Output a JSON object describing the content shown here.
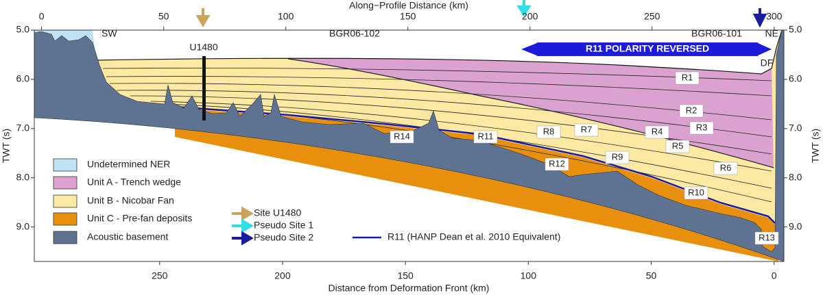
{
  "axes": {
    "top": {
      "label": "Along−Profile Distance (km)",
      "xlim": [
        -3,
        304
      ],
      "ticks": [
        0,
        50,
        100,
        150,
        200,
        250,
        300
      ]
    },
    "bottom": {
      "label": "Distance from Deformation Front (km)",
      "xlim": [
        301,
        -4
      ],
      "ticks": [
        250,
        200,
        150,
        100,
        50,
        0
      ]
    },
    "left": {
      "label": "TWT (s)",
      "ylim": [
        5.0,
        9.7
      ],
      "ticks": [
        {
          "value": 5,
          "label": "5.0"
        },
        {
          "value": 6,
          "label": "6.0"
        },
        {
          "value": 7,
          "label": "7.0"
        },
        {
          "value": 8,
          "label": "8.0"
        },
        {
          "value": 9,
          "label": "9.0"
        }
      ]
    },
    "right": {
      "label": "TWT (s)",
      "ylim": [
        5.0,
        9.7
      ],
      "ticks": [
        {
          "value": 5,
          "label": "5.0"
        },
        {
          "value": 6,
          "label": "6.0"
        },
        {
          "value": 7,
          "label": "7.0"
        },
        {
          "value": 8,
          "label": "8.0"
        },
        {
          "value": 9,
          "label": "9.0"
        }
      ]
    }
  },
  "annotations": {
    "sw": "SW",
    "ne": "NE",
    "line1": "BGR06-102",
    "line2": "BGR06-101",
    "site": "U1480",
    "df": "DF",
    "banner": "R11 POLARITY REVERSED"
  },
  "reflectors": [
    "R1",
    "R2",
    "R3",
    "R4",
    "R5",
    "R6",
    "R7",
    "R8",
    "R9",
    "R10",
    "R11",
    "R12",
    "R13",
    "R14"
  ],
  "legend": {
    "units": [
      "Undetermined NER",
      "Unit A - Trench wedge",
      "Unit B - Nicobar Fan",
      "Unit C - Pre-fan deposits",
      "Acoustic basement"
    ],
    "sites": [
      "Site U1480",
      "Pseudo Site 1",
      "Pseudo Site 2"
    ],
    "line": "R11 (HANP Dean et al. 2010 Equivalent)"
  }
}
